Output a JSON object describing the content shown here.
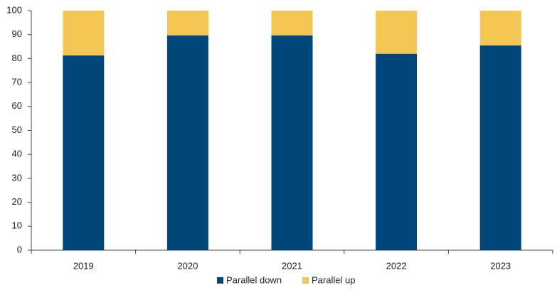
{
  "chart_data": {
    "type": "stacked_bar",
    "categories": [
      "2019",
      "2020",
      "2021",
      "2022",
      "2023"
    ],
    "series": [
      {
        "name": "Parallel down",
        "color": "#00467a",
        "values": [
          81.3,
          89.7,
          89.7,
          82,
          85.5
        ]
      },
      {
        "name": "Parallel up",
        "color": "#f4c654",
        "values": [
          18.7,
          10.3,
          10.3,
          18,
          14.5
        ]
      }
    ],
    "ylim": [
      0,
      100
    ],
    "yticks": [
      0,
      10,
      20,
      30,
      40,
      50,
      60,
      70,
      80,
      90,
      100
    ],
    "grid": false
  }
}
